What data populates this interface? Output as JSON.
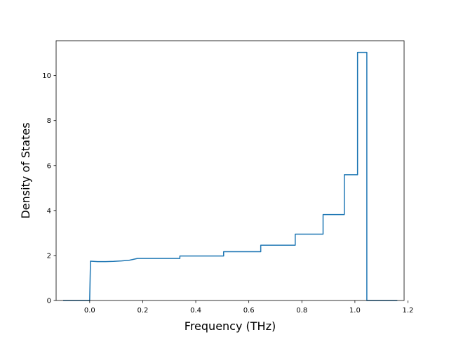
{
  "chart_data": {
    "type": "line",
    "title": "",
    "xlabel": "Frequency (THz)",
    "ylabel": "Density of States",
    "xlim": [
      -0.1265,
      1.1855
    ],
    "ylim": [
      0,
      11.55
    ],
    "xticks": [
      0.0,
      0.2,
      0.4,
      0.6,
      0.8,
      1.0,
      1.2
    ],
    "xtick_labels": [
      "0.0",
      "0.2",
      "0.4",
      "0.6",
      "0.8",
      "1.0",
      "1.2"
    ],
    "yticks": [
      0,
      2,
      4,
      6,
      8,
      10
    ],
    "ytick_labels": [
      "0",
      "2",
      "4",
      "6",
      "8",
      "10"
    ],
    "grid": false,
    "legend": "none",
    "series": [
      {
        "color": "#1f77b4",
        "x": [
          -0.1,
          0.0,
          0.003,
          0.03,
          0.06,
          0.09,
          0.12,
          0.15,
          0.18,
          0.34,
          0.34,
          0.505,
          0.505,
          0.645,
          0.645,
          0.775,
          0.775,
          0.88,
          0.88,
          0.96,
          0.96,
          1.01,
          1.01,
          1.045,
          1.045,
          1.05,
          1.16
        ],
        "y": [
          0,
          0,
          1.75,
          1.73,
          1.73,
          1.74,
          1.76,
          1.79,
          1.87,
          1.87,
          1.98,
          1.98,
          2.17,
          2.17,
          2.46,
          2.46,
          2.95,
          2.95,
          3.82,
          3.82,
          5.59,
          5.59,
          11.03,
          11.03,
          0,
          0,
          0
        ]
      }
    ]
  }
}
